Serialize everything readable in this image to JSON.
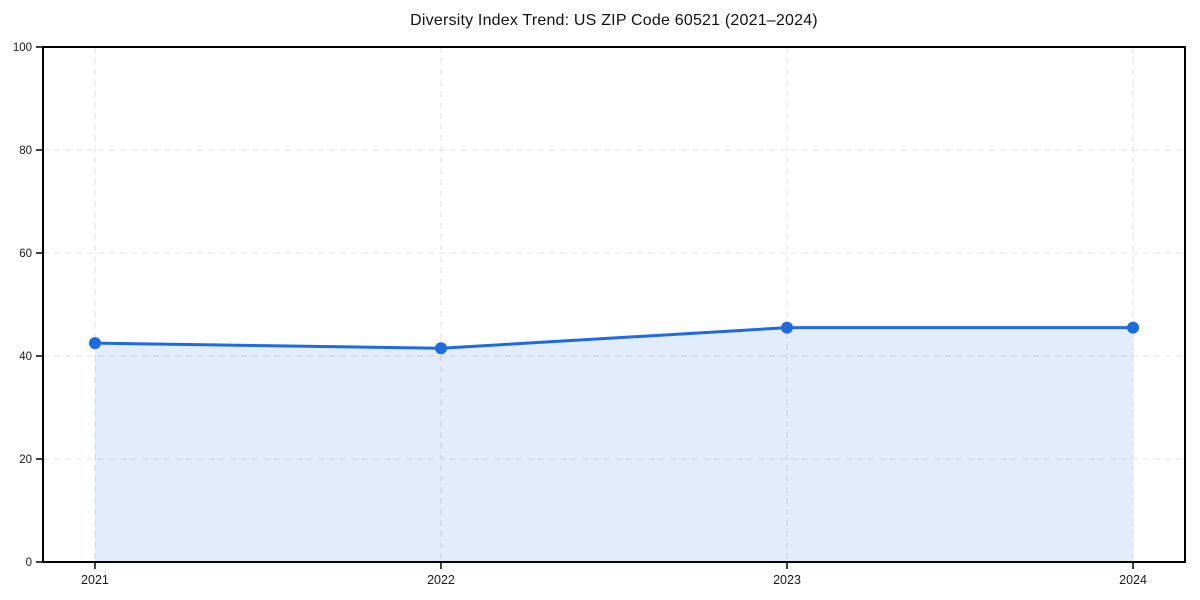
{
  "chart_data": {
    "type": "area",
    "title": "Diversity Index Trend: US ZIP Code 60521 (2021–2024)",
    "categories": [
      "2021",
      "2022",
      "2023",
      "2024"
    ],
    "values": [
      42.5,
      41.5,
      45.5,
      45.5
    ],
    "series": [
      {
        "name": "Diversity Index",
        "values": [
          42.5,
          41.5,
          45.5,
          45.5
        ]
      }
    ],
    "xlabel": "",
    "ylabel": "",
    "ylim": [
      0,
      100
    ],
    "y_ticks": [
      0,
      20,
      40,
      60,
      80,
      100
    ],
    "grid": true,
    "grid_style": "dashed",
    "legend_position": "none",
    "marker": "circle",
    "colors": {
      "line": "#1e6ae1",
      "marker": "#1e6ae1",
      "fill": "#1e6ae1",
      "fill_opacity": 0.13,
      "grid": "#e0e0e0",
      "spine": "#000000",
      "tick_text": "#1a1a1a",
      "background": "#ffffff"
    }
  }
}
